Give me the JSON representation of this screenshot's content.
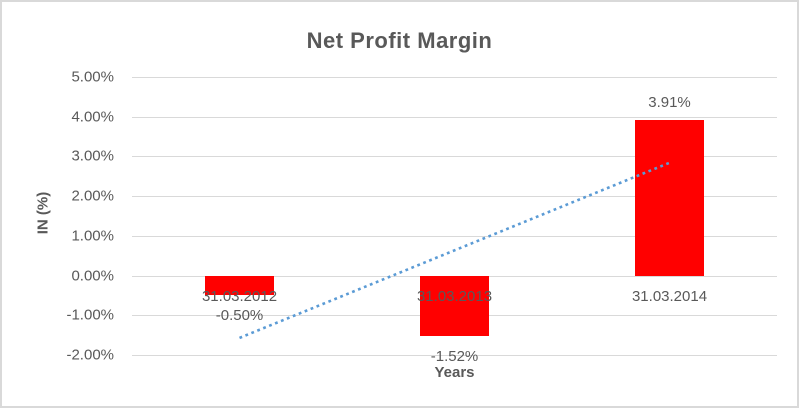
{
  "chart_data": {
    "type": "bar",
    "title": "Net Profit Margin",
    "xlabel": "Years",
    "ylabel": "IN (%)",
    "categories": [
      "31.03.2012",
      "31.03.2013",
      "31.03.2014"
    ],
    "values": [
      -0.5,
      -1.52,
      3.91
    ],
    "data_labels": [
      "-0.50%",
      "-1.52%",
      "3.91%"
    ],
    "ylim": [
      -2,
      5
    ],
    "ytick_step": 1,
    "ytick_labels": [
      "5.00%",
      "4.00%",
      "3.00%",
      "2.00%",
      "1.00%",
      "0.00%",
      "-1.00%",
      "-2.00%"
    ],
    "grid": true,
    "legend": "none",
    "bar_color": "#FF0000",
    "grid_color": "#D9D9D9",
    "text_color": "#595959",
    "border_color": "#D9D9D9",
    "trendline": {
      "type": "linear",
      "style": "dotted",
      "color": "#5B9BD5",
      "start_category": "31.03.2012",
      "start_value": -1.57,
      "end_category": "31.03.2014",
      "end_value": 2.84
    }
  }
}
